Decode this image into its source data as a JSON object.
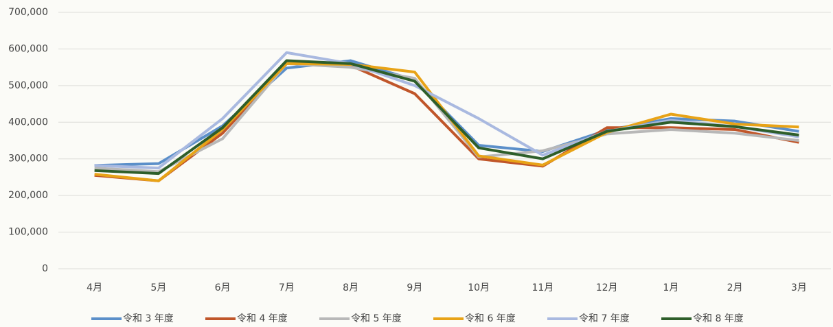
{
  "chart_data": {
    "type": "line",
    "categories": [
      "4月",
      "5月",
      "6月",
      "7月",
      "8月",
      "9月",
      "10月",
      "11月",
      "12月",
      "1月",
      "2月",
      "3月"
    ],
    "series": [
      {
        "name": "令和 3 年度",
        "color": "#5b8fc9",
        "values": [
          282000,
          287000,
          390000,
          548000,
          568000,
          515000,
          337000,
          320000,
          378000,
          410000,
          403000,
          375000
        ]
      },
      {
        "name": "令和 4 年度",
        "color": "#c0562a",
        "values": [
          255000,
          240000,
          370000,
          560000,
          555000,
          478000,
          300000,
          280000,
          385000,
          385000,
          380000,
          345000
        ]
      },
      {
        "name": "令和 5 年度",
        "color": "#b8b8b8",
        "values": [
          275000,
          265000,
          355000,
          560000,
          550000,
          520000,
          305000,
          322000,
          368000,
          380000,
          370000,
          350000
        ]
      },
      {
        "name": "令和 6 年度",
        "color": "#e8a317",
        "values": [
          258000,
          240000,
          380000,
          560000,
          558000,
          537000,
          308000,
          283000,
          372000,
          422000,
          395000,
          387000
        ]
      },
      {
        "name": "令和 7 年度",
        "color": "#a9b9e0",
        "values": [
          282000,
          275000,
          410000,
          590000,
          560000,
          500000,
          410000,
          310000,
          375000,
          405000,
          388000,
          360000
        ]
      },
      {
        "name": "令和 8 年度",
        "color": "#2e5e2a",
        "values": [
          268000,
          260000,
          385000,
          568000,
          560000,
          512000,
          330000,
          300000,
          375000,
          400000,
          388000,
          365000
        ]
      }
    ],
    "ylim": [
      0,
      700000
    ],
    "yticks": [
      0,
      {
        "value": 100000,
        "label": "100,000"
      },
      {
        "value": 200000,
        "label": "200,000"
      },
      {
        "value": 300000,
        "label": "300,000"
      },
      {
        "value": 400000,
        "label": "400,000"
      },
      {
        "value": 500000,
        "label": "500,000"
      },
      {
        "value": 600000,
        "label": "600,000"
      },
      {
        "value": 700000,
        "label": "700,000"
      }
    ],
    "grid": true,
    "legend": "bottom"
  }
}
